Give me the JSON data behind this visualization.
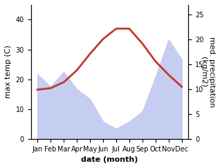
{
  "months": [
    "Jan",
    "Feb",
    "Mar",
    "Apr",
    "May",
    "Jun",
    "Jul",
    "Aug",
    "Sep",
    "Oct",
    "Nov",
    "Dec"
  ],
  "max_temp": [
    16.5,
    17.0,
    19.0,
    23.0,
    28.5,
    33.5,
    37.0,
    37.0,
    32.0,
    26.0,
    21.5,
    17.5
  ],
  "precipitation": [
    13.0,
    10.5,
    13.5,
    10.0,
    8.0,
    3.5,
    2.0,
    3.5,
    5.5,
    12.5,
    20.0,
    16.0
  ],
  "temp_color": "#c0392b",
  "precip_fill_color": "#c5cdf0",
  "ylabel_left": "max temp (C)",
  "ylabel_right": "med. precipitation\n(kg/m2)",
  "xlabel": "date (month)",
  "ylim_left": [
    0,
    45
  ],
  "ylim_right": [
    0,
    27
  ],
  "yticks_left": [
    0,
    10,
    20,
    30,
    40
  ],
  "yticks_right": [
    0,
    5,
    10,
    15,
    20,
    25
  ],
  "background_color": "#ffffff",
  "label_fontsize": 8,
  "tick_fontsize": 7
}
